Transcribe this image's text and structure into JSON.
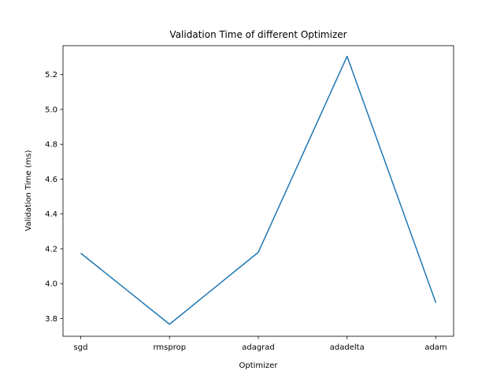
{
  "chart_data": {
    "type": "line",
    "title": "Validation Time of different Optimizer",
    "xlabel": "Optimizer",
    "ylabel": "Validation Time (ms)",
    "categories": [
      "sgd",
      "rmsprop",
      "adagrad",
      "adadelta",
      "adam"
    ],
    "series": [
      {
        "values": [
          4.175,
          3.767,
          4.18,
          5.305,
          3.89
        ]
      }
    ],
    "ylim": [
      3.698,
      5.366
    ],
    "yticks": [
      "3.8",
      "4.0",
      "4.2",
      "4.4",
      "4.6",
      "4.8",
      "5.0",
      "5.2"
    ],
    "line_color": "#1f77b4",
    "grid": false
  }
}
